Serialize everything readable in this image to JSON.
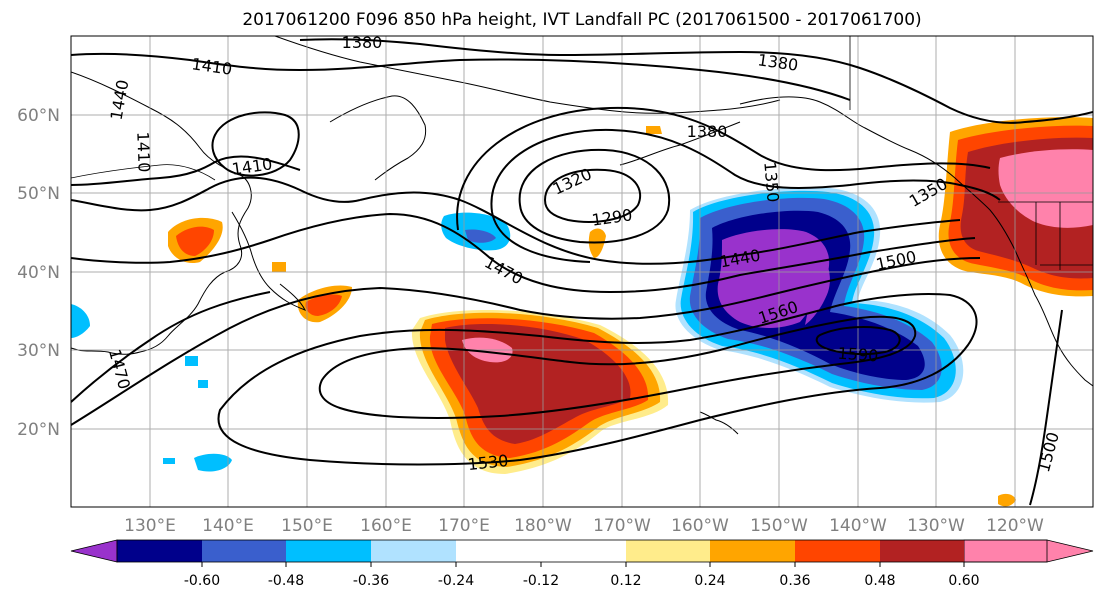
{
  "title": "2017061200 F096 850 hPa height, IVT Landfall PC (2017061500 - 2017061700)",
  "lat_labels": [
    "60°N",
    "50°N",
    "40°N",
    "30°N",
    "20°N"
  ],
  "lon_labels": [
    "130°E",
    "140°E",
    "150°E",
    "160°E",
    "170°E",
    "180°W",
    "170°W",
    "160°W",
    "150°W",
    "140°W",
    "130°W",
    "120°W"
  ],
  "colorbar": {
    "colors": [
      "#9932cc",
      "#00008b",
      "#3a5fcd",
      "#00bfff",
      "#b0e2ff",
      "#ffffff",
      "#ffec8b",
      "#ffa500",
      "#ff4500",
      "#b22222",
      "#ff82ab"
    ],
    "tick_labels": [
      "-0.60",
      "-0.48",
      "-0.36",
      "-0.24",
      "-0.12",
      "0.12",
      "0.24",
      "0.36",
      "0.48",
      "0.60"
    ]
  },
  "contour_labels": [
    "1380",
    "1410",
    "1440",
    "1410",
    "1410",
    "1380",
    "1380",
    "1350",
    "1320",
    "1290",
    "1350",
    "1440",
    "1470",
    "1500",
    "1560",
    "1590",
    "1470",
    "1530",
    "1500"
  ],
  "map_extent": {
    "lon_min": 120,
    "lon_max": 250,
    "lat_min": 10,
    "lat_max": 70
  }
}
